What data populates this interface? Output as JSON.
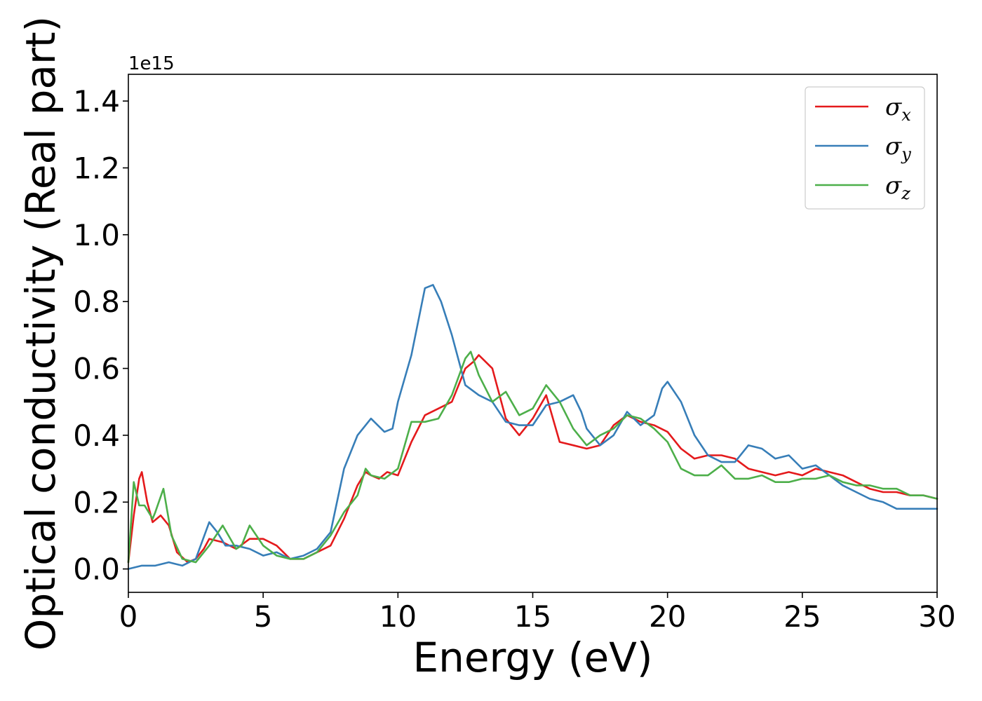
{
  "chart_data": {
    "type": "line",
    "xlabel": "Energy (eV)",
    "ylabel": "Optical conductivity (Real part)",
    "y_offset_text": "1e15",
    "xlim": [
      0,
      30
    ],
    "ylim": [
      -0.07,
      1.48
    ],
    "xticks": [
      0,
      5,
      10,
      15,
      20,
      25,
      30
    ],
    "xtick_labels": [
      "0",
      "5",
      "10",
      "15",
      "20",
      "25",
      "30"
    ],
    "yticks": [
      0.0,
      0.2,
      0.4,
      0.6,
      0.8,
      1.0,
      1.2,
      1.4
    ],
    "ytick_labels": [
      "0.0",
      "0.2",
      "0.4",
      "0.6",
      "0.8",
      "1.0",
      "1.2",
      "1.4"
    ],
    "grid": false,
    "legend_position": "top-right",
    "series": [
      {
        "name": "σ",
        "subscript": "x",
        "color": "#e41a1c",
        "x": [
          0,
          0.2,
          0.4,
          0.5,
          0.7,
          0.9,
          1.2,
          1.5,
          1.8,
          2.2,
          2.5,
          2.8,
          3.0,
          3.5,
          4.0,
          4.5,
          5.0,
          5.5,
          6.0,
          6.5,
          7.0,
          7.5,
          8.0,
          8.5,
          8.8,
          9.0,
          9.3,
          9.6,
          10.0,
          10.5,
          11.0,
          11.5,
          12.0,
          12.5,
          12.8,
          13.0,
          13.5,
          14.0,
          14.5,
          15.0,
          15.5,
          16.0,
          16.5,
          17.0,
          17.5,
          18.0,
          18.5,
          19.0,
          19.5,
          20.0,
          20.5,
          21.0,
          21.5,
          22.0,
          22.5,
          23.0,
          23.5,
          24.0,
          24.5,
          25.0,
          25.5,
          26.0,
          26.5,
          27.0,
          27.5,
          28.0,
          28.5,
          29.0,
          29.5,
          30.0
        ],
        "y": [
          0.02,
          0.16,
          0.27,
          0.29,
          0.2,
          0.14,
          0.16,
          0.13,
          0.05,
          0.02,
          0.03,
          0.06,
          0.09,
          0.08,
          0.06,
          0.09,
          0.09,
          0.07,
          0.03,
          0.03,
          0.05,
          0.07,
          0.15,
          0.25,
          0.29,
          0.28,
          0.27,
          0.29,
          0.28,
          0.38,
          0.46,
          0.48,
          0.5,
          0.6,
          0.62,
          0.64,
          0.6,
          0.45,
          0.4,
          0.45,
          0.52,
          0.38,
          0.37,
          0.36,
          0.37,
          0.43,
          0.46,
          0.44,
          0.43,
          0.41,
          0.36,
          0.33,
          0.34,
          0.34,
          0.33,
          0.3,
          0.29,
          0.28,
          0.29,
          0.28,
          0.3,
          0.29,
          0.28,
          0.26,
          0.24,
          0.23,
          0.23,
          0.22,
          0.22,
          0.21
        ]
      },
      {
        "name": "σ",
        "subscript": "y",
        "color": "#377eb8",
        "x": [
          0,
          0.5,
          1.0,
          1.5,
          2.0,
          2.5,
          3.0,
          3.3,
          3.6,
          4.0,
          4.5,
          5.0,
          5.5,
          6.0,
          6.5,
          7.0,
          7.5,
          8.0,
          8.5,
          9.0,
          9.5,
          9.8,
          10.0,
          10.5,
          11.0,
          11.3,
          11.6,
          12.0,
          12.5,
          13.0,
          13.5,
          14.0,
          14.5,
          15.0,
          15.5,
          16.0,
          16.5,
          16.8,
          17.0,
          17.5,
          18.0,
          18.5,
          19.0,
          19.5,
          19.8,
          20.0,
          20.5,
          21.0,
          21.5,
          22.0,
          22.5,
          23.0,
          23.5,
          24.0,
          24.5,
          25.0,
          25.5,
          26.0,
          26.5,
          27.0,
          27.5,
          28.0,
          28.5,
          29.0,
          29.5,
          30.0
        ],
        "y": [
          0.0,
          0.01,
          0.01,
          0.02,
          0.01,
          0.03,
          0.14,
          0.11,
          0.07,
          0.07,
          0.06,
          0.04,
          0.05,
          0.03,
          0.04,
          0.06,
          0.11,
          0.3,
          0.4,
          0.45,
          0.41,
          0.42,
          0.5,
          0.64,
          0.84,
          0.85,
          0.8,
          0.7,
          0.55,
          0.52,
          0.5,
          0.44,
          0.43,
          0.43,
          0.49,
          0.5,
          0.52,
          0.47,
          0.42,
          0.37,
          0.4,
          0.47,
          0.43,
          0.46,
          0.54,
          0.56,
          0.5,
          0.4,
          0.34,
          0.32,
          0.32,
          0.37,
          0.36,
          0.33,
          0.34,
          0.3,
          0.31,
          0.28,
          0.25,
          0.23,
          0.21,
          0.2,
          0.18,
          0.18,
          0.18,
          0.18
        ]
      },
      {
        "name": "σ",
        "subscript": "z",
        "color": "#4daf4a",
        "x": [
          0,
          0.2,
          0.4,
          0.6,
          0.9,
          1.0,
          1.3,
          1.6,
          2.0,
          2.5,
          3.0,
          3.5,
          4.0,
          4.2,
          4.5,
          5.0,
          5.5,
          6.0,
          6.5,
          7.0,
          7.5,
          8.0,
          8.5,
          8.8,
          9.0,
          9.5,
          10.0,
          10.5,
          11.0,
          11.5,
          12.0,
          12.5,
          12.7,
          13.0,
          13.5,
          14.0,
          14.5,
          15.0,
          15.5,
          16.0,
          16.5,
          17.0,
          17.5,
          18.0,
          18.5,
          19.0,
          19.5,
          20.0,
          20.5,
          21.0,
          21.5,
          22.0,
          22.5,
          23.0,
          23.5,
          24.0,
          24.5,
          25.0,
          25.5,
          26.0,
          26.5,
          27.0,
          27.5,
          28.0,
          28.5,
          29.0,
          29.5,
          30.0
        ],
        "y": [
          0.02,
          0.26,
          0.19,
          0.19,
          0.15,
          0.17,
          0.24,
          0.1,
          0.03,
          0.02,
          0.07,
          0.13,
          0.06,
          0.07,
          0.13,
          0.07,
          0.04,
          0.03,
          0.03,
          0.05,
          0.1,
          0.17,
          0.22,
          0.3,
          0.28,
          0.27,
          0.3,
          0.44,
          0.44,
          0.45,
          0.52,
          0.63,
          0.65,
          0.58,
          0.5,
          0.53,
          0.46,
          0.48,
          0.55,
          0.5,
          0.42,
          0.37,
          0.4,
          0.42,
          0.46,
          0.45,
          0.42,
          0.38,
          0.3,
          0.28,
          0.28,
          0.31,
          0.27,
          0.27,
          0.28,
          0.26,
          0.26,
          0.27,
          0.27,
          0.28,
          0.26,
          0.25,
          0.25,
          0.24,
          0.24,
          0.22,
          0.22,
          0.21
        ]
      }
    ]
  }
}
